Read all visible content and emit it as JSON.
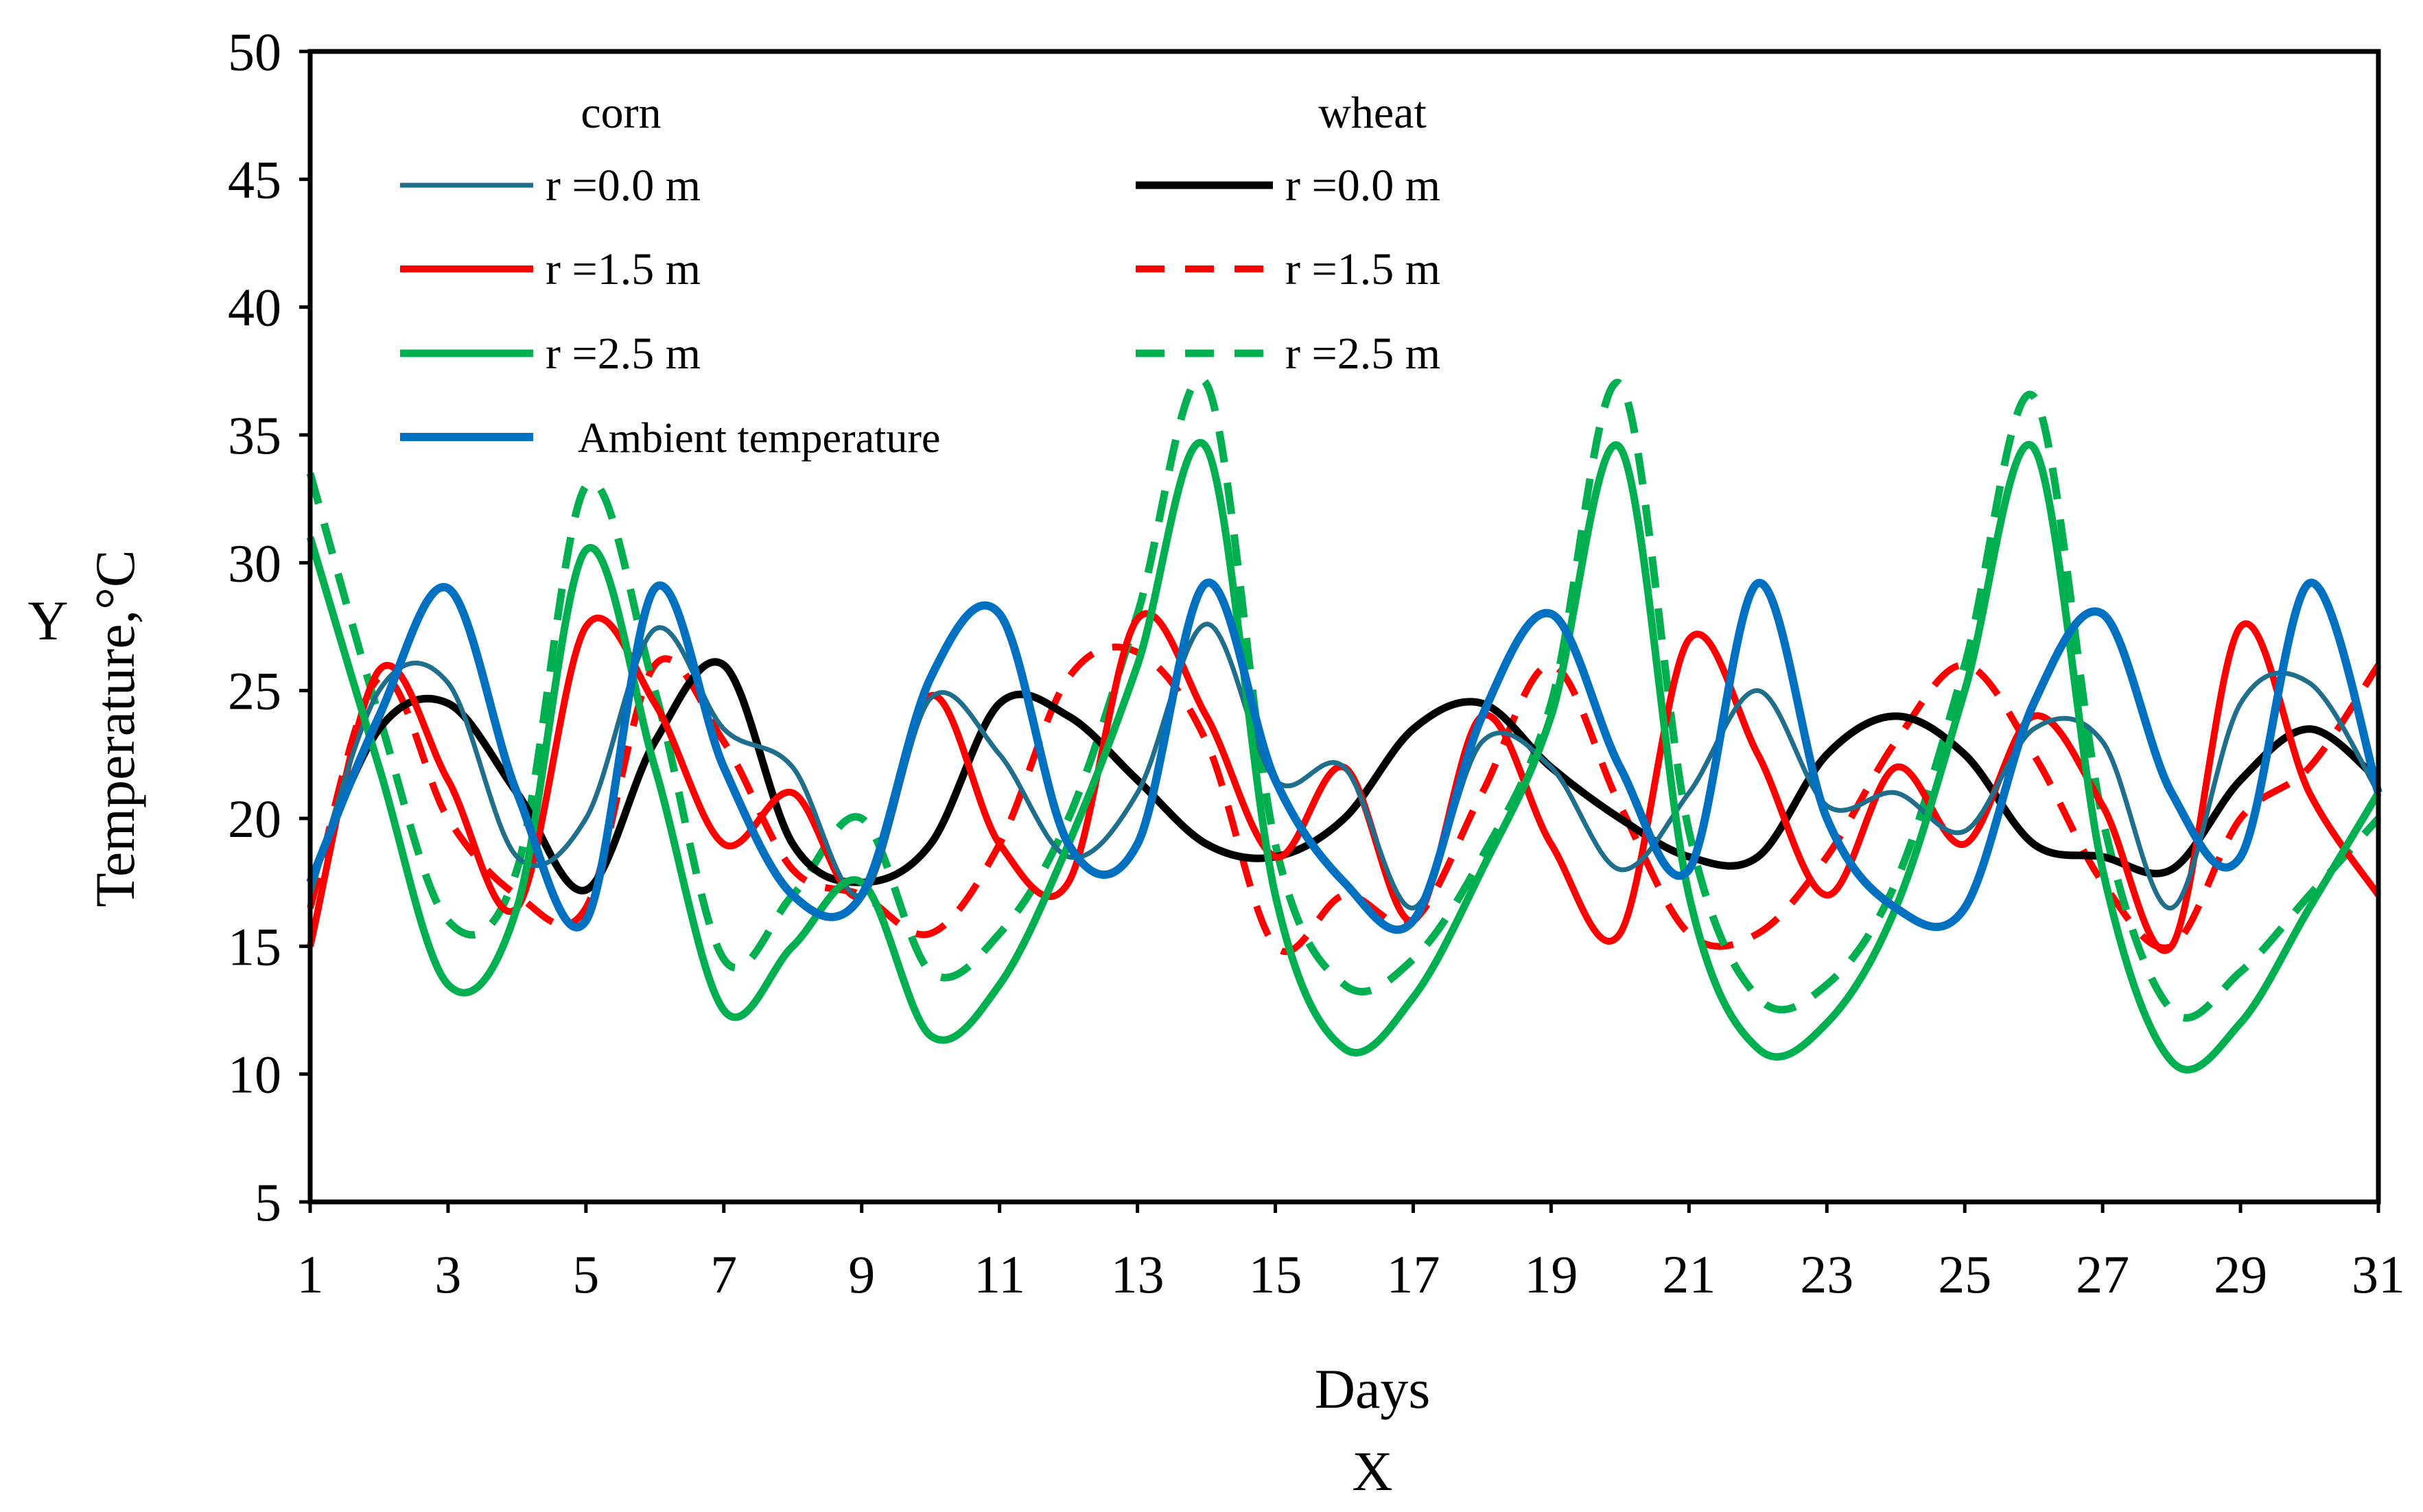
{
  "chart_data": {
    "type": "line",
    "title": "",
    "xlabel": "Days",
    "xlabel_letter": "X",
    "ylabel": "Temperature,°C",
    "ylabel_letter": "Y",
    "xlim": [
      1,
      31
    ],
    "ylim": [
      5,
      50
    ],
    "x_ticks": [
      1,
      3,
      5,
      7,
      9,
      11,
      13,
      15,
      17,
      19,
      21,
      23,
      25,
      27,
      29,
      31
    ],
    "y_ticks": [
      5,
      10,
      15,
      20,
      25,
      30,
      35,
      40,
      45,
      50
    ],
    "grid": false,
    "legend_placement": "top-left",
    "legend_groups": [
      {
        "label": "corn"
      },
      {
        "label": "wheat"
      }
    ],
    "x": [
      1,
      2,
      3,
      4,
      5,
      6,
      7,
      8,
      9,
      10,
      11,
      12,
      13,
      14,
      15,
      16,
      17,
      18,
      19,
      20,
      21,
      22,
      23,
      24,
      25,
      26,
      27,
      28,
      29,
      30,
      31
    ],
    "series": [
      {
        "name": "r =0.0 m",
        "group": "corn",
        "color": "#1f6e8c",
        "dash": "solid",
        "width": 7,
        "values": [
          17,
          25,
          25.3,
          18.5,
          20,
          27.4,
          23.5,
          22,
          17,
          24.7,
          22.5,
          18.5,
          21,
          27.6,
          21.5,
          22,
          16.5,
          23,
          22,
          18,
          21,
          25,
          20.5,
          21,
          19.5,
          23.5,
          23,
          16.5,
          24.5,
          25.3,
          21
        ]
      },
      {
        "name": "r =0.0 m",
        "group": "wheat",
        "color": "#000000",
        "dash": "solid",
        "width": 11,
        "values": [
          17.5,
          23.5,
          24.5,
          21,
          17.2,
          23,
          26,
          19,
          17.5,
          19,
          24.5,
          24,
          21.5,
          19,
          18.5,
          20,
          23.5,
          24.5,
          22,
          20,
          18.5,
          18.5,
          22.5,
          24,
          22.5,
          19,
          18.5,
          18,
          21.5,
          23.5,
          21.5
        ]
      },
      {
        "name": "r =1.5 m",
        "group": "corn",
        "color": "#ff0000",
        "dash": "solid",
        "width": 10,
        "values": [
          15,
          25.8,
          21.5,
          16.5,
          27.5,
          24.5,
          19,
          21,
          17,
          24.8,
          19,
          17.5,
          27.8,
          24,
          18.5,
          22,
          16,
          24,
          19,
          15.5,
          27,
          22.5,
          17,
          22,
          19,
          24,
          20.5,
          15,
          27.5,
          21,
          17
        ]
      },
      {
        "name": "r =1.5 m",
        "group": "wheat",
        "color": "#ff0000",
        "dash": "dashed",
        "width": 10,
        "values": [
          16.5,
          25.5,
          20,
          17,
          16.5,
          26,
          23,
          18,
          17,
          15.5,
          19,
          25.5,
          26.5,
          23,
          15,
          17,
          16,
          21,
          26,
          20.5,
          15.5,
          15.5,
          18.5,
          23,
          26,
          22.5,
          17.5,
          15,
          20,
          22,
          26
        ]
      },
      {
        "name": "r =2.5 m",
        "group": "corn",
        "color": "#00b050",
        "dash": "solid",
        "width": 11,
        "values": [
          31,
          22,
          13.5,
          16.5,
          30.5,
          22,
          12.5,
          15,
          17.5,
          11.5,
          13.5,
          19,
          26,
          34.5,
          17,
          11,
          13,
          18,
          24,
          34.5,
          17,
          11,
          12,
          16.5,
          25,
          34.5,
          18,
          10.5,
          12,
          16.5,
          21
        ]
      },
      {
        "name": "r =2.5 m",
        "group": "wheat",
        "color": "#00b050",
        "dash": "dashed",
        "width": 11,
        "values": [
          33.5,
          24,
          16,
          18,
          33,
          25,
          14.5,
          17,
          20,
          14,
          15.5,
          20,
          28,
          37,
          19,
          13.5,
          14.5,
          18.5,
          24.5,
          37,
          19.5,
          13,
          13.5,
          17.5,
          26,
          36.5,
          20,
          12.5,
          14,
          17,
          20
        ]
      },
      {
        "name": "Ambient temperature",
        "group": "",
        "color": "#0070c0",
        "dash": "solid",
        "width": 12,
        "values": [
          17.5,
          24,
          29,
          21,
          16,
          29,
          22,
          17,
          17,
          25.5,
          28,
          19,
          19,
          29.2,
          21.5,
          17.5,
          16,
          24,
          28,
          22,
          18,
          29.2,
          20,
          16.5,
          16.5,
          24.5,
          28,
          21,
          18.5,
          29.2,
          21
        ]
      }
    ]
  }
}
